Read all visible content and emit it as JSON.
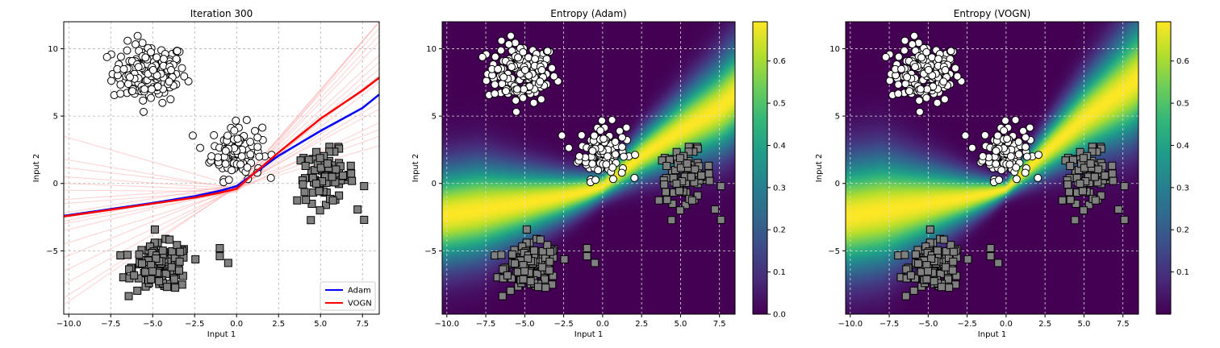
{
  "chart_data": [
    {
      "type": "scatter",
      "title": "Iteration 300",
      "xlabel": "Input 1",
      "ylabel": "Input 2",
      "xlim": [
        -10.3,
        8.5
      ],
      "ylim": [
        -9.7,
        12.0
      ],
      "xticks": [
        -10.0,
        -7.5,
        -5.0,
        -2.5,
        0.0,
        2.5,
        5.0,
        7.5
      ],
      "xtick_labels": [
        "−10.0",
        "−7.5",
        "−5.0",
        "−2.5",
        "0.0",
        "2.5",
        "5.0",
        "7.5"
      ],
      "yticks": [
        -5,
        0,
        5,
        10
      ],
      "ytick_labels": [
        "−5",
        "0",
        "5",
        "10"
      ],
      "grid": true,
      "legend_position": "bottom-right",
      "clusters": [
        {
          "class": 0,
          "marker": "circle",
          "fill": "#ffffff",
          "center": [
            -5.2,
            8.2
          ],
          "spread": [
            1.1,
            1.1
          ],
          "count": 150
        },
        {
          "class": 0,
          "marker": "circle",
          "fill": "#ffffff",
          "center": [
            0.0,
            2.4
          ],
          "spread": [
            0.75,
            1.0
          ],
          "count": 110
        },
        {
          "class": 1,
          "marker": "square",
          "fill": "#808080",
          "center": [
            5.3,
            0.5
          ],
          "spread": [
            0.85,
            0.95
          ],
          "count": 90
        },
        {
          "class": 1,
          "marker": "square",
          "fill": "#808080",
          "center": [
            -4.5,
            -6.2
          ],
          "spread": [
            0.85,
            0.85
          ],
          "count": 150
        }
      ],
      "series": [
        {
          "name": "Adam",
          "color": "#0000ff",
          "x": [
            -10.3,
            -7.5,
            -5.0,
            -2.5,
            -1.0,
            0.0,
            1.0,
            2.5,
            5.0,
            7.5,
            8.5
          ],
          "y": [
            -2.4,
            -1.9,
            -1.45,
            -0.95,
            -0.55,
            -0.2,
            0.7,
            2.05,
            3.9,
            5.6,
            6.6
          ]
        },
        {
          "name": "VOGN",
          "color": "#ff0000",
          "x": [
            -10.3,
            -7.5,
            -5.0,
            -2.5,
            -1.0,
            0.0,
            0.8,
            2.5,
            5.0,
            7.5,
            8.5
          ],
          "y": [
            -2.45,
            -1.95,
            -1.5,
            -1.05,
            -0.7,
            -0.4,
            0.5,
            2.3,
            4.8,
            6.9,
            7.85
          ]
        }
      ],
      "posterior_sample_color": "#ff9999",
      "posterior_samples": [
        {
          "x": [
            -10.3,
            0.0,
            8.5
          ],
          "y": [
            -5.5,
            -0.3,
            9.5
          ]
        },
        {
          "x": [
            -10.3,
            0.0,
            8.5
          ],
          "y": [
            -8.5,
            -0.3,
            12.0
          ]
        },
        {
          "x": [
            -10.3,
            0.0,
            8.5
          ],
          "y": [
            -3.5,
            -0.4,
            6.5
          ]
        },
        {
          "x": [
            -10.3,
            0.0,
            8.5
          ],
          "y": [
            -1.5,
            -0.5,
            4.5
          ]
        },
        {
          "x": [
            -10.3,
            0.0,
            8.5
          ],
          "y": [
            0.5,
            -0.4,
            11.0
          ]
        },
        {
          "x": [
            -10.3,
            0.0,
            8.5
          ],
          "y": [
            1.2,
            -0.3,
            3.5
          ]
        },
        {
          "x": [
            -10.3,
            0.0,
            8.5
          ],
          "y": [
            -0.5,
            -0.6,
            8.5
          ]
        },
        {
          "x": [
            -10.3,
            0.0,
            8.5
          ],
          "y": [
            -2.8,
            -0.2,
            12.0
          ]
        },
        {
          "x": [
            -10.3,
            0.0,
            8.5
          ],
          "y": [
            -4.5,
            -0.5,
            7.5
          ]
        },
        {
          "x": [
            -10.3,
            0.0,
            8.5
          ],
          "y": [
            3.5,
            -0.2,
            5.5
          ]
        },
        {
          "x": [
            -10.3,
            0.0,
            8.5
          ],
          "y": [
            -6.5,
            -0.4,
            10.5
          ]
        },
        {
          "x": [
            -10.3,
            0.0,
            8.5
          ],
          "y": [
            -1.2,
            -0.3,
            2.8
          ]
        },
        {
          "x": [
            -10.3,
            0.0,
            8.5
          ],
          "y": [
            0.0,
            -0.5,
            9.0
          ]
        },
        {
          "x": [
            -10.3,
            0.0,
            8.5
          ],
          "y": [
            -3.0,
            -0.6,
            12.0
          ]
        },
        {
          "x": [
            -10.3,
            0.0,
            8.5
          ],
          "y": [
            -2.2,
            -0.1,
            4.0
          ]
        },
        {
          "x": [
            -10.3,
            0.0,
            8.5
          ],
          "y": [
            -7.5,
            -0.3,
            8.0
          ]
        },
        {
          "x": [
            -10.3,
            0.0,
            8.5
          ],
          "y": [
            1.8,
            -0.4,
            6.0
          ]
        },
        {
          "x": [
            -10.3,
            0.0,
            8.5
          ],
          "y": [
            -9.0,
            -0.2,
            11.5
          ]
        }
      ]
    },
    {
      "type": "heatmap",
      "title": "Entropy (Adam)",
      "xlabel": "Input 1",
      "ylabel": "Input 2",
      "xlim": [
        -10.3,
        8.5
      ],
      "ylim": [
        -9.7,
        12.0
      ],
      "xticks": [
        -10.0,
        -7.5,
        -5.0,
        -2.5,
        0.0,
        2.5,
        5.0,
        7.5
      ],
      "xtick_labels": [
        "−10.0",
        "−7.5",
        "−5.0",
        "−2.5",
        "0.0",
        "2.5",
        "5.0",
        "7.5"
      ],
      "yticks": [
        -5,
        0,
        5,
        10
      ],
      "ytick_labels": [
        "−5",
        "0",
        "5",
        "10"
      ],
      "grid": true,
      "colormap": "viridis",
      "value_range": [
        0.0,
        0.693
      ],
      "colorbar_ticks": [
        0.0,
        0.1,
        0.2,
        0.3,
        0.4,
        0.5,
        0.6
      ],
      "colorbar_labels": [
        "0.0",
        "0.1",
        "0.2",
        "0.3",
        "0.4",
        "0.5",
        "0.6"
      ],
      "boundary": {
        "x": [
          -10.3,
          -7.5,
          -5.0,
          -2.5,
          -1.0,
          0.0,
          1.0,
          2.5,
          5.0,
          7.5,
          8.5
        ],
        "y": [
          -2.4,
          -1.9,
          -1.45,
          -0.95,
          -0.55,
          -0.2,
          0.7,
          2.05,
          3.9,
          5.6,
          6.6
        ]
      },
      "band_width_far": 3.2,
      "band_width_center": 0.9
    },
    {
      "type": "heatmap",
      "title": "Entropy (VOGN)",
      "xlabel": "Input 1",
      "ylabel": "Input 2",
      "xlim": [
        -10.3,
        8.5
      ],
      "ylim": [
        -9.7,
        12.0
      ],
      "xticks": [
        -10.0,
        -7.5,
        -5.0,
        -2.5,
        0.0,
        2.5,
        5.0,
        7.5
      ],
      "xtick_labels": [
        "−10.0",
        "−7.5",
        "−5.0",
        "−2.5",
        "0.0",
        "2.5",
        "5.0",
        "7.5"
      ],
      "yticks": [
        -5,
        0,
        5,
        10
      ],
      "ytick_labels": [
        "−5",
        "0",
        "5",
        "10"
      ],
      "grid": true,
      "colormap": "viridis",
      "value_range": [
        0.0,
        0.693
      ],
      "colorbar_ticks": [
        0.1,
        0.2,
        0.3,
        0.4,
        0.5,
        0.6
      ],
      "colorbar_labels": [
        "0.1",
        "0.2",
        "0.3",
        "0.4",
        "0.5",
        "0.6"
      ],
      "boundary": {
        "x": [
          -10.3,
          -7.5,
          -5.0,
          -2.5,
          -1.0,
          0.0,
          0.8,
          2.5,
          5.0,
          7.5,
          8.5
        ],
        "y": [
          -2.45,
          -1.95,
          -1.5,
          -1.05,
          -0.7,
          -0.4,
          0.5,
          2.3,
          4.8,
          6.9,
          7.85
        ]
      },
      "band_width_far": 3.8,
      "band_width_center": 0.6
    }
  ]
}
